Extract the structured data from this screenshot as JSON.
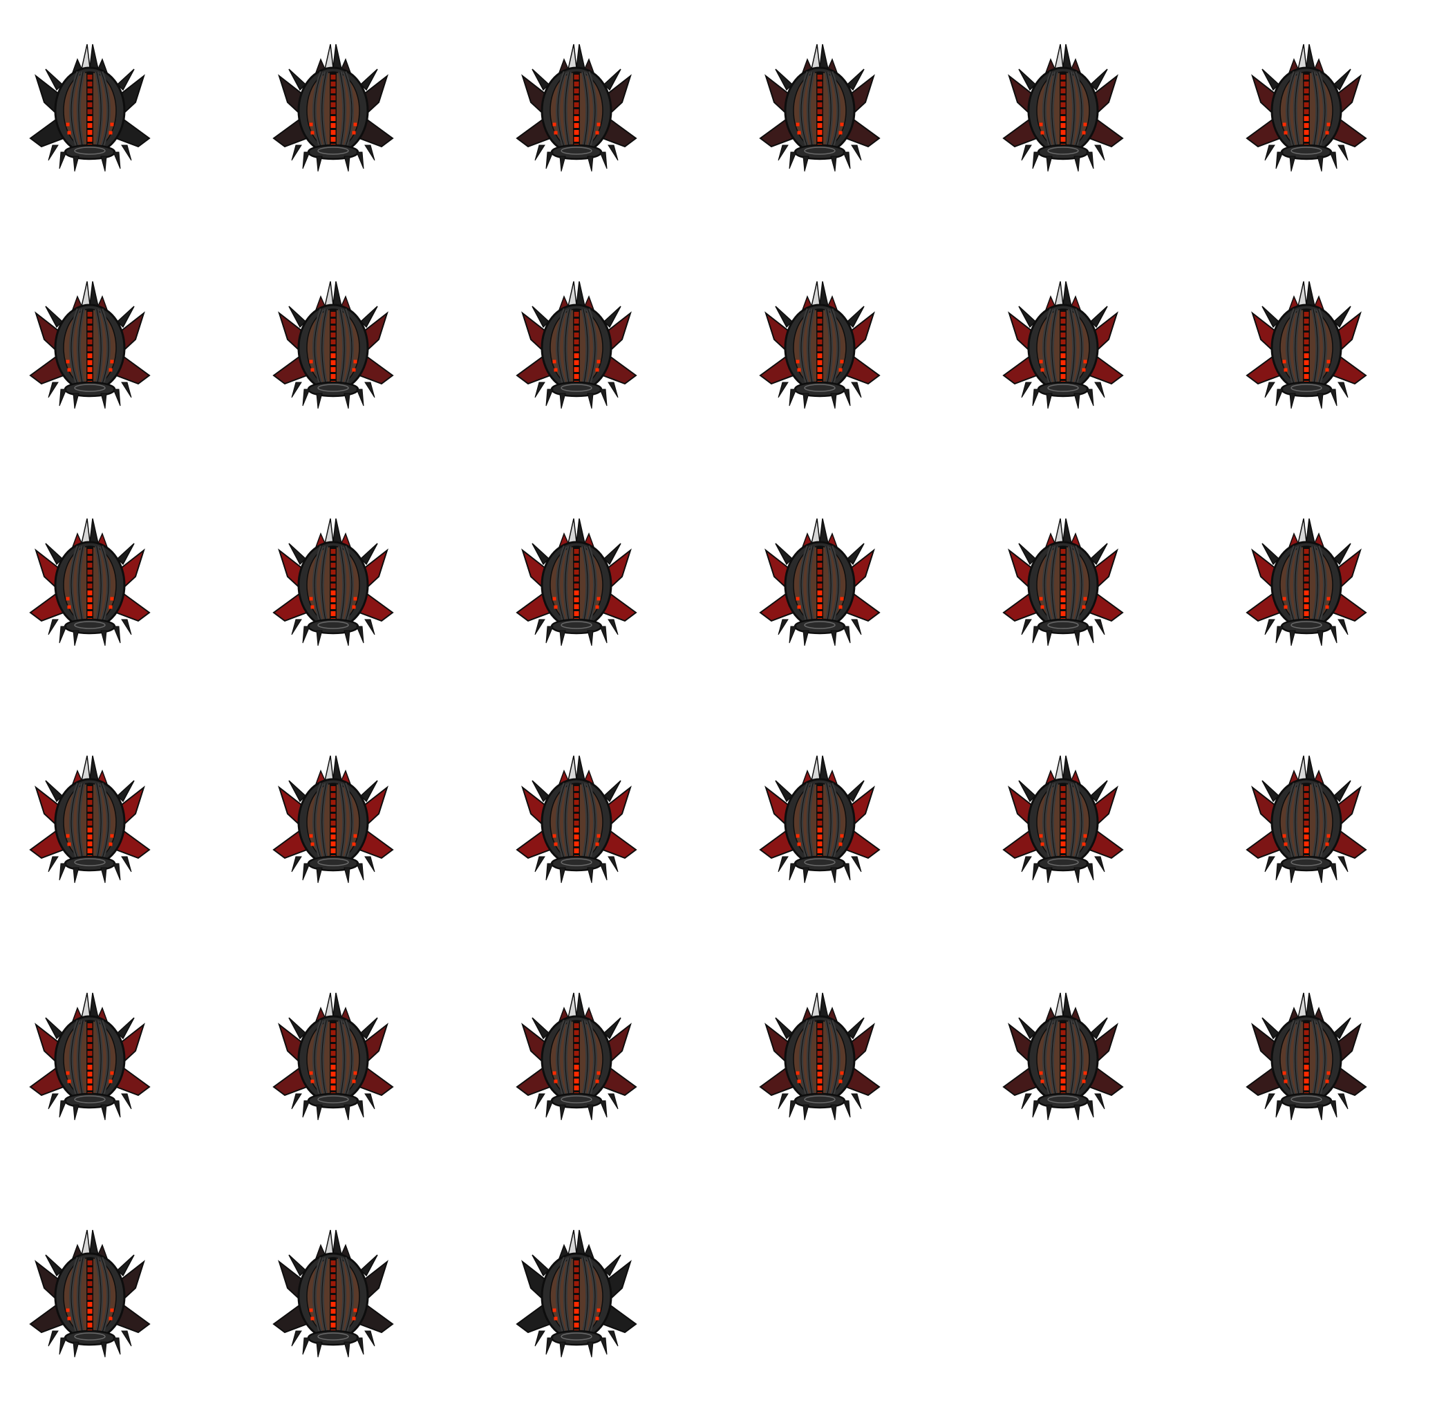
{
  "sprite_sheet": {
    "sprite_name": "spiked-orb-ship",
    "icon": "spiked-orb-ship-icon",
    "background": "#ffffff",
    "columns": 6,
    "rows": 6,
    "frame_count": 33,
    "colors": {
      "hull_outline": "#0d0d0d",
      "hull_dark": "#2a2a2a",
      "hull_mid": "#3b3b3b",
      "hull_core": "#5a3a2a",
      "spike_dark": "#1c1c1c",
      "spike_light": "#d8d8d8",
      "fin_red": "#8a1414",
      "glow_red": "#ff2a00",
      "glow_dim": "#9c1a08"
    },
    "frames": [
      {
        "fin_red": 0.0
      },
      {
        "fin_red": 0.1
      },
      {
        "fin_red": 0.18
      },
      {
        "fin_red": 0.28
      },
      {
        "fin_red": 0.38
      },
      {
        "fin_red": 0.48
      },
      {
        "fin_red": 0.58
      },
      {
        "fin_red": 0.66
      },
      {
        "fin_red": 0.74
      },
      {
        "fin_red": 0.82
      },
      {
        "fin_red": 0.88
      },
      {
        "fin_red": 0.94
      },
      {
        "fin_red": 1.0
      },
      {
        "fin_red": 1.0
      },
      {
        "fin_red": 1.0
      },
      {
        "fin_red": 1.0
      },
      {
        "fin_red": 1.0
      },
      {
        "fin_red": 1.0
      },
      {
        "fin_red": 1.0
      },
      {
        "fin_red": 1.0
      },
      {
        "fin_red": 1.0
      },
      {
        "fin_red": 1.0
      },
      {
        "fin_red": 0.94
      },
      {
        "fin_red": 0.88
      },
      {
        "fin_red": 0.8
      },
      {
        "fin_red": 0.7
      },
      {
        "fin_red": 0.6
      },
      {
        "fin_red": 0.48
      },
      {
        "fin_red": 0.36
      },
      {
        "fin_red": 0.24
      },
      {
        "fin_red": 0.14
      },
      {
        "fin_red": 0.06
      },
      {
        "fin_red": 0.0
      }
    ]
  }
}
